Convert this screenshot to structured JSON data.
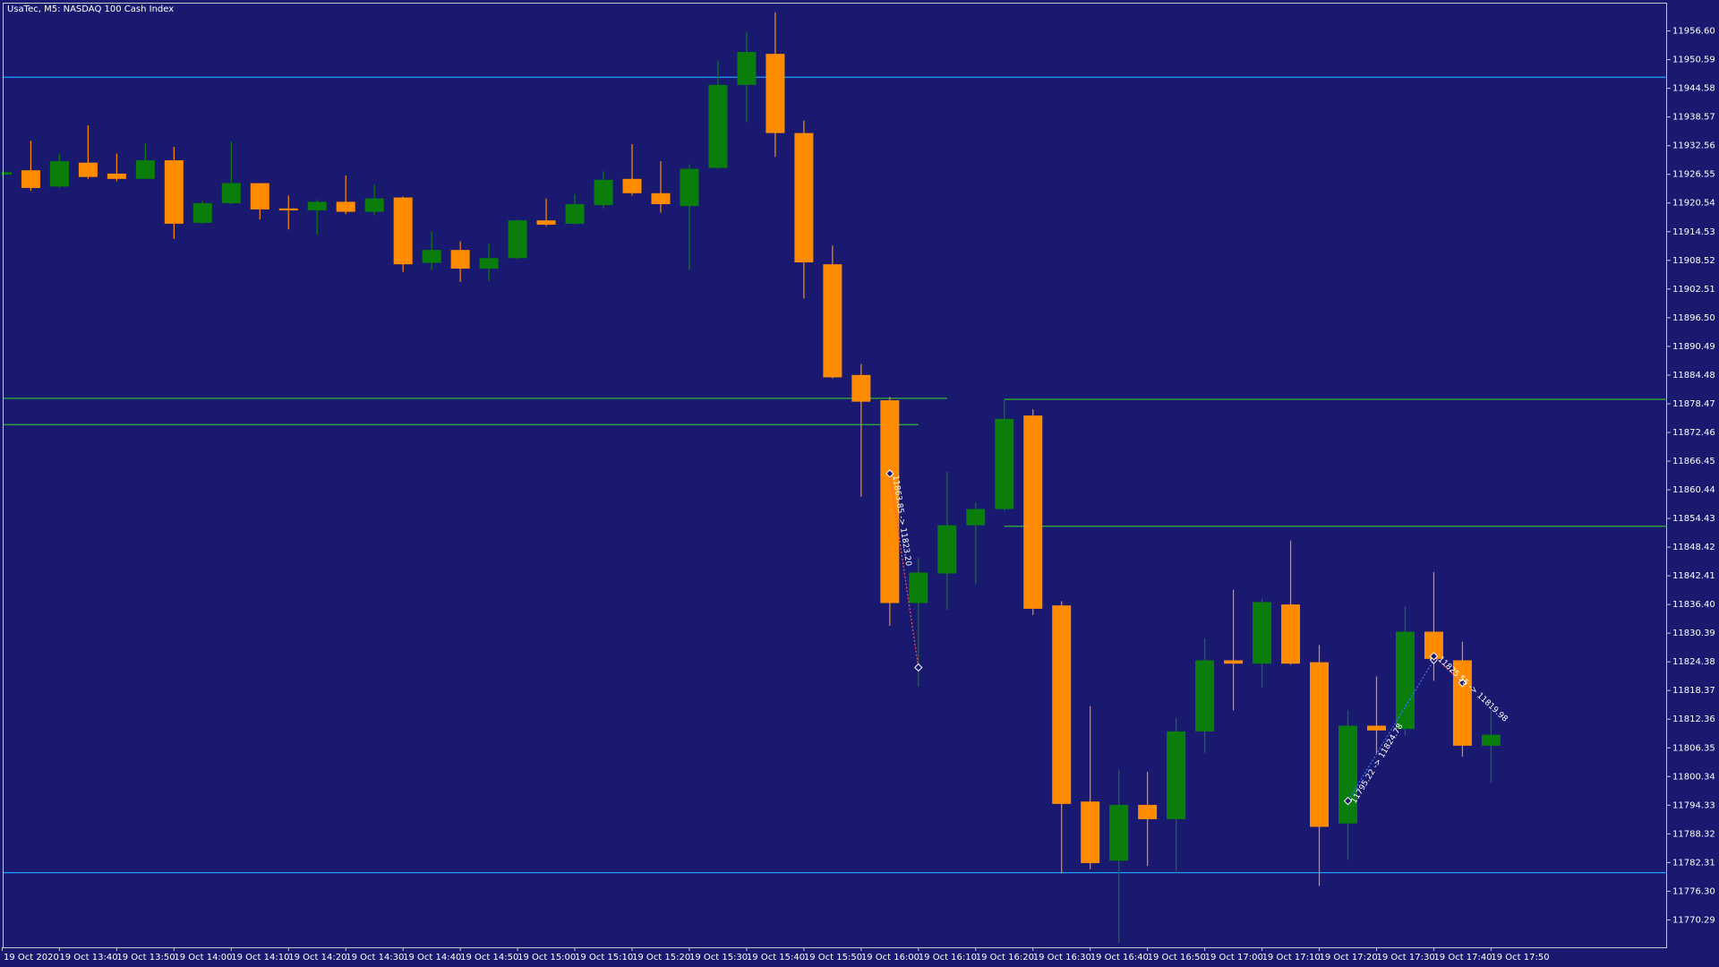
{
  "chart_data": {
    "type": "candlestick",
    "title": "UsaTec, M5:  NASDAQ 100 Cash Index",
    "categories": [
      "19 Oct 2020",
      null,
      "19 Oct 13:40",
      null,
      "19 Oct 13:50",
      null,
      "19 Oct 14:00",
      null,
      "19 Oct 14:10",
      null,
      "19 Oct 14:20",
      null,
      "19 Oct 14:30",
      null,
      "19 Oct 14:40",
      null,
      "19 Oct 14:50",
      null,
      "19 Oct 15:00",
      null,
      "19 Oct 15:10",
      null,
      "19 Oct 15:20",
      null,
      "19 Oct 15:30",
      null,
      "19 Oct 15:40",
      null,
      "19 Oct 15:50",
      null,
      "19 Oct 16:00",
      null,
      "19 Oct 16:10",
      null,
      "19 Oct 16:20",
      null,
      "19 Oct 16:30",
      null,
      "19 Oct 16:40",
      null,
      "19 Oct 16:50",
      null,
      "19 Oct 17:00",
      null,
      "19 Oct 17:10",
      null,
      "19 Oct 17:20",
      null,
      "19 Oct 17:30",
      null,
      "19 Oct 17:40",
      null,
      "19 Oct 17:50"
    ],
    "open": [
      11926.5,
      11927.4,
      11924.0,
      11929.0,
      11926.7,
      11925.6,
      11929.5,
      11916.4,
      11920.5,
      11924.7,
      11919.4,
      11919.0,
      11920.8,
      11918.7,
      11921.7,
      11908.0,
      11910.7,
      11906.8,
      11909.0,
      11916.9,
      11916.2,
      11920.1,
      11925.6,
      11922.6,
      11919.9,
      11927.9,
      11945.3,
      11951.8,
      11935.2,
      11907.7,
      11884.5,
      11879.2,
      11836.7,
      11842.9,
      11853.0,
      11856.4,
      11876.0,
      11836.2,
      11795.1,
      11782.7,
      11794.4,
      11791.4,
      11809.8,
      11824.7,
      11824.0,
      11836.4,
      11824.3,
      11790.5,
      11811.0,
      11810.3,
      11830.7,
      11824.7,
      11806.8
    ],
    "high": [
      11927.2,
      11933.6,
      11930.9,
      11936.8,
      11930.9,
      11933.0,
      11932.3,
      11921.0,
      11933.4,
      11924.7,
      11922.1,
      11921.2,
      11926.3,
      11924.4,
      11921.9,
      11914.6,
      11912.5,
      11912.0,
      11917.1,
      11921.5,
      11922.4,
      11927.2,
      11932.9,
      11929.3,
      11928.6,
      11950.4,
      11956.4,
      11960.5,
      11937.8,
      11911.6,
      11886.8,
      11879.9,
      11846.3,
      11864.2,
      11857.8,
      11879.4,
      11877.3,
      11837.1,
      11815.1,
      11801.8,
      11801.3,
      11812.6,
      11829.3,
      11839.5,
      11837.6,
      11849.8,
      11827.9,
      11814.2,
      11821.3,
      11836.0,
      11843.2,
      11828.6,
      11814.2
    ],
    "low": [
      11926.3,
      11923.1,
      11923.8,
      11925.6,
      11925.1,
      11925.6,
      11913.0,
      11916.2,
      11920.3,
      11917.1,
      11915.0,
      11913.9,
      11918.2,
      11918.0,
      11906.1,
      11906.5,
      11904.0,
      11904.2,
      11908.8,
      11915.7,
      11916.0,
      11919.4,
      11922.1,
      11918.5,
      11906.5,
      11927.7,
      11937.5,
      11930.2,
      11900.5,
      11883.8,
      11859.0,
      11831.9,
      11819.2,
      11835.3,
      11840.6,
      11856.0,
      11834.2,
      11780.0,
      11780.9,
      11765.5,
      11781.6,
      11780.0,
      11805.2,
      11814.2,
      11819.0,
      11823.8,
      11777.4,
      11782.9,
      11805.2,
      11808.9,
      11820.4,
      11804.5,
      11799.0
    ],
    "close": [
      11927.0,
      11923.7,
      11929.3,
      11926.0,
      11925.6,
      11929.5,
      11916.2,
      11920.5,
      11924.7,
      11919.2,
      11919.0,
      11920.8,
      11918.7,
      11921.5,
      11907.7,
      11910.7,
      11906.8,
      11909.0,
      11916.9,
      11916.0,
      11920.3,
      11925.4,
      11922.6,
      11920.3,
      11927.7,
      11945.3,
      11952.2,
      11935.2,
      11908.1,
      11884.0,
      11878.9,
      11836.7,
      11843.1,
      11853.0,
      11856.4,
      11875.3,
      11835.5,
      11794.6,
      11782.2,
      11794.4,
      11791.4,
      11809.8,
      11824.7,
      11824.0,
      11836.9,
      11824.0,
      11789.8,
      11811.0,
      11810.0,
      11830.7,
      11825.0,
      11806.8,
      11809.1
    ],
    "up_color": "#0b7d0b",
    "down_color": "#ff8c00",
    "ylim": [
      11764.55,
      11962.34
    ],
    "yticks": [
      {
        "value": 11956.6,
        "label": "11956.60"
      },
      11950.59,
      11944.58,
      11938.57,
      11932.56,
      11926.55,
      11920.54,
      11914.53,
      11908.52,
      11902.51,
      {
        "value": 11896.5,
        "label": "11896.50"
      },
      11890.49,
      11884.48,
      11878.47,
      11872.46,
      11866.45,
      11860.44,
      11854.43,
      11848.42,
      11842.41,
      {
        "value": 11836.4,
        "label": "11836.40"
      },
      11830.39,
      11824.38,
      11818.37,
      11812.36,
      11806.35,
      11800.34,
      11794.33,
      11788.32,
      11782.31,
      {
        "value": 11776.3,
        "label": "11776.30"
      },
      11770.29
    ],
    "grid": false,
    "levels": [
      {
        "value": 11946.9,
        "color": "#1e9fff"
      },
      {
        "value": 11780.2,
        "color": "#1e9fff"
      },
      {
        "value": 11879.6,
        "color": "#32b432",
        "to": 33
      },
      {
        "value": 11874.1,
        "color": "#32b432",
        "to": 32
      },
      {
        "value": 11879.4,
        "color": "#32b432",
        "from": 35
      },
      {
        "value": 11852.8,
        "color": "#32b432",
        "from": 35
      }
    ],
    "trades": [
      {
        "label": "11863.85 -> 11823.20",
        "from": 31,
        "to": 32,
        "open": 11863.85,
        "close": 11823.2,
        "color": "#ff5050"
      },
      {
        "label": "11795.22 -> 11824.78",
        "from": 47,
        "to": 50,
        "open": 11795.22,
        "close": 11824.78,
        "color": "#3c78ff"
      },
      {
        "label": "11825.55 -> 11819.98",
        "from": 50,
        "to": 51,
        "open": 11825.55,
        "close": 11819.98,
        "color": "#ff5050"
      }
    ]
  }
}
